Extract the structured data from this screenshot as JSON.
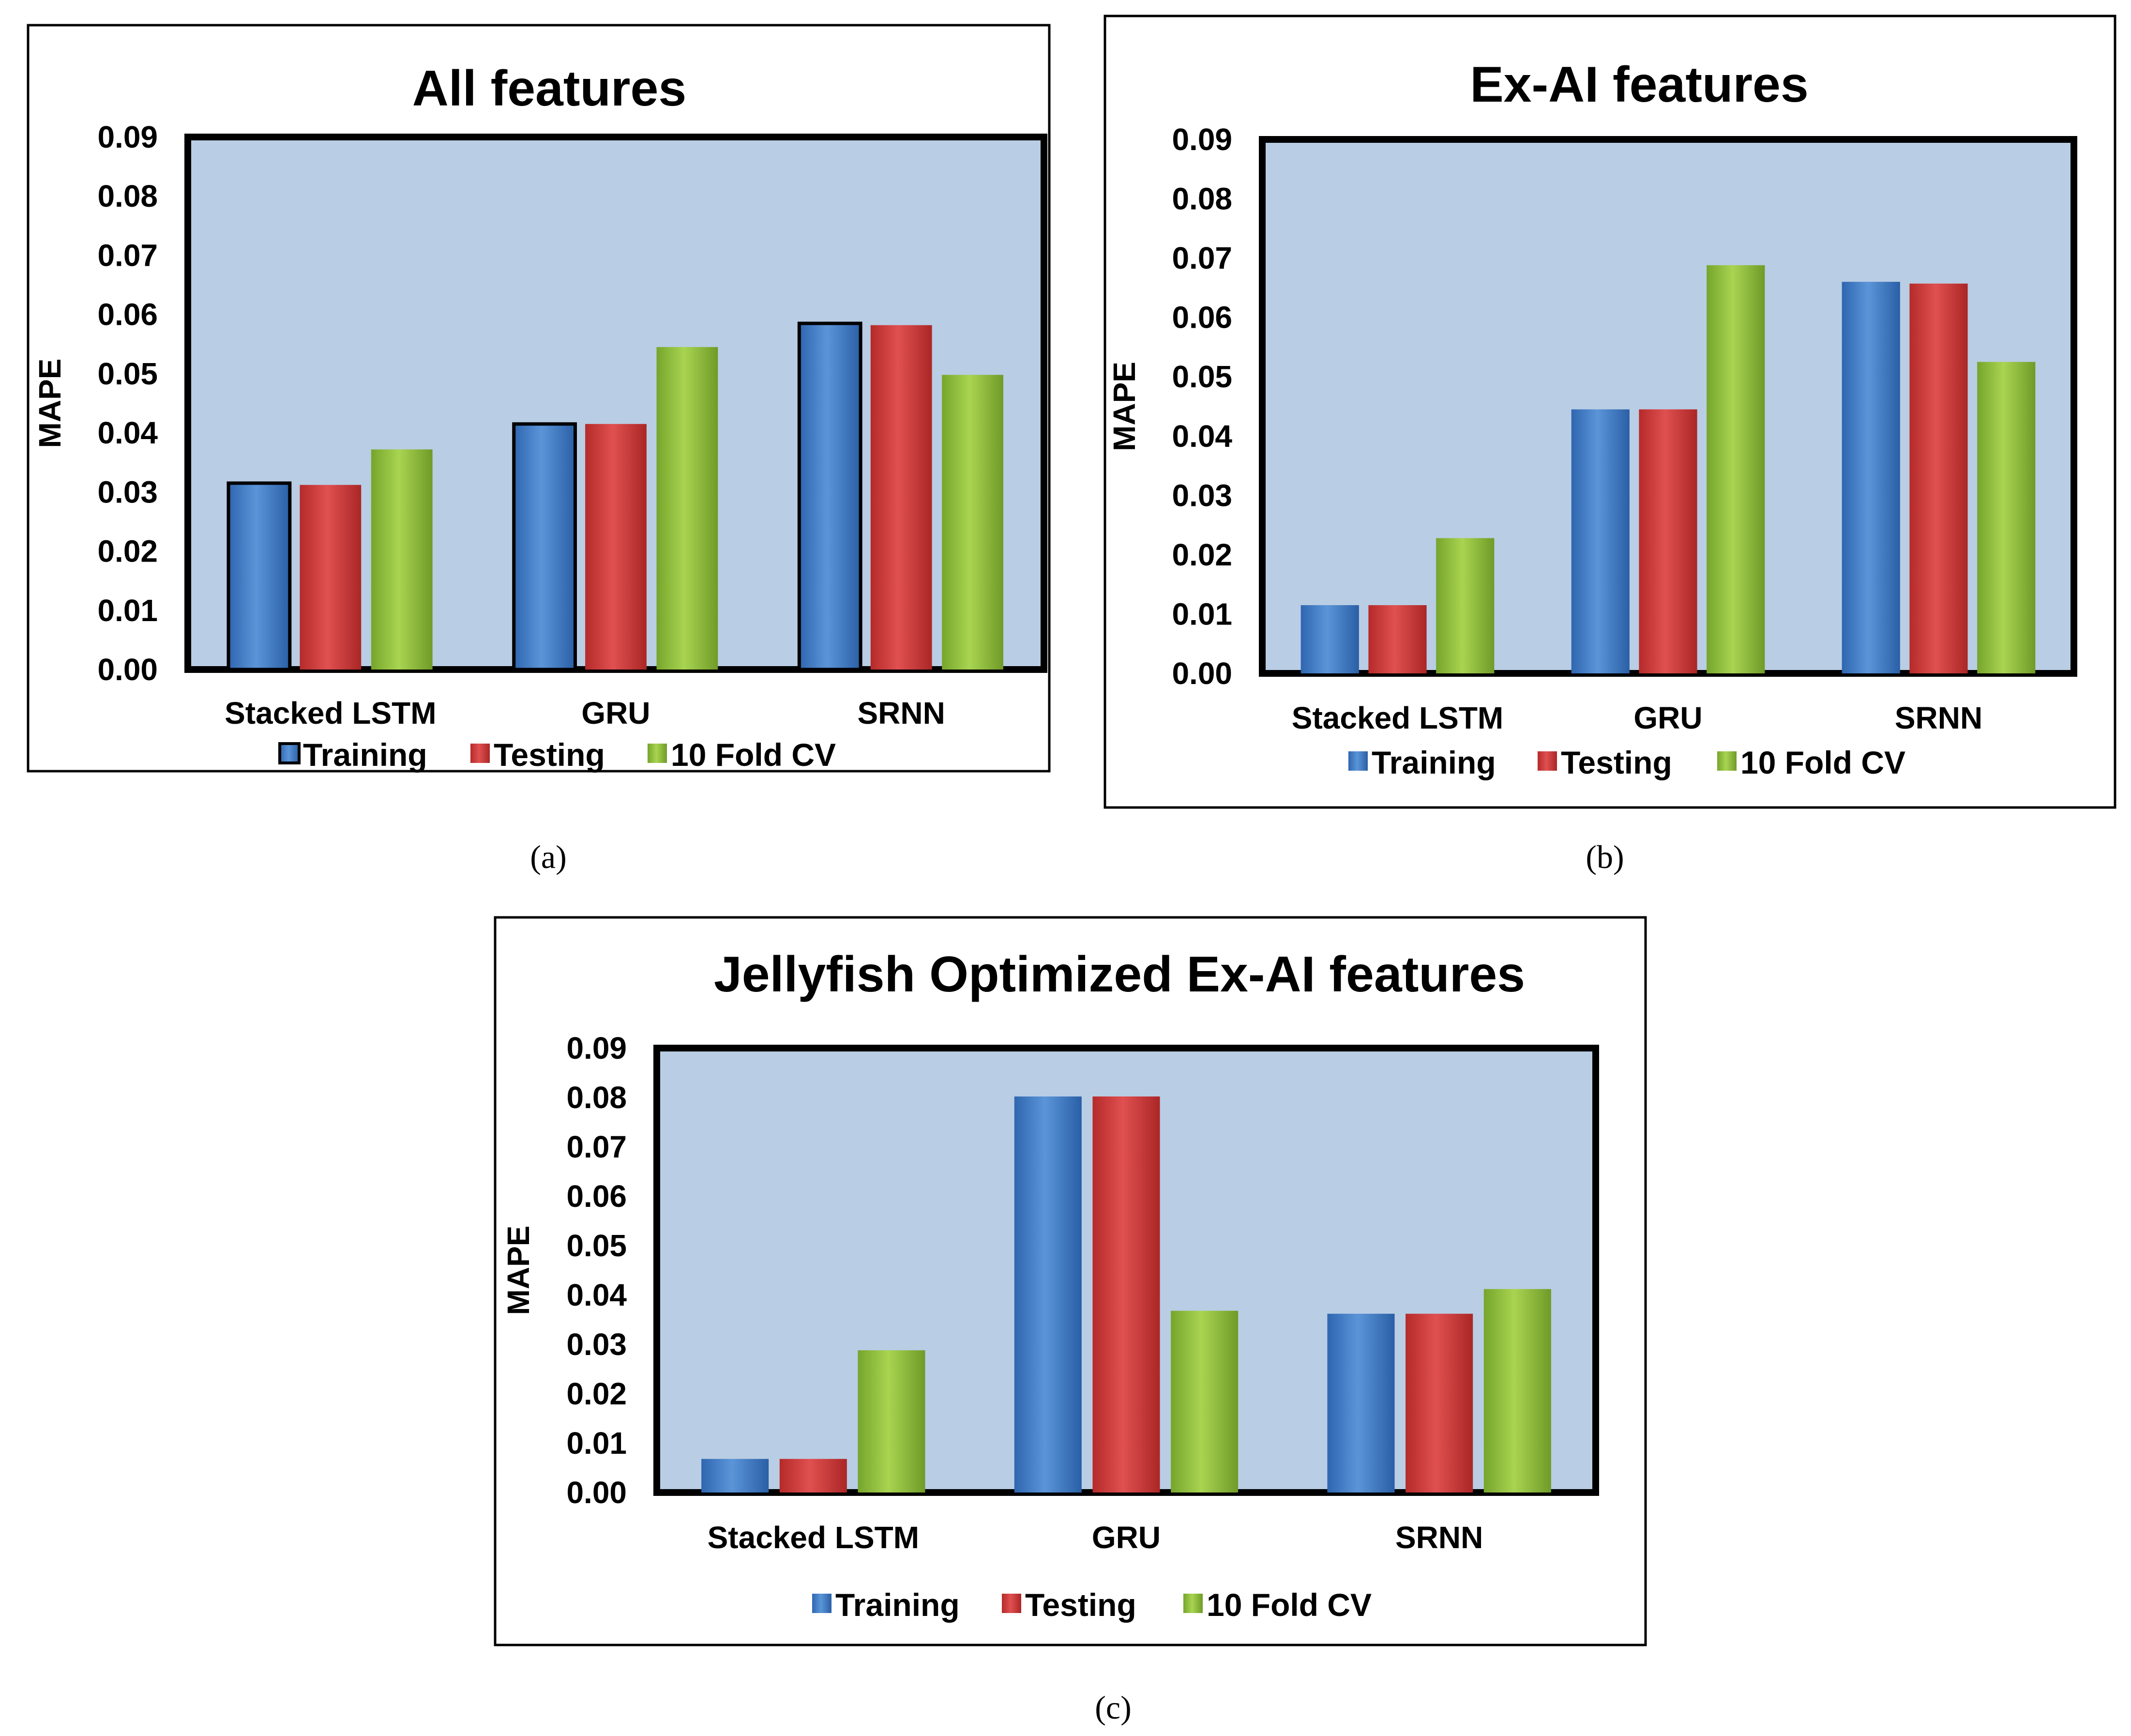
{
  "colors": {
    "plot_bg": "#b9cde4",
    "training": "#4a86cf",
    "testing": "#d63c3c",
    "cv": "#93c23d",
    "frame": "#000000"
  },
  "chart_data": [
    {
      "type": "bar",
      "panel_label": "(a)",
      "title": "All features",
      "ylabel": "MAPE",
      "xlabel": "",
      "ylim": [
        0,
        0.09
      ],
      "yticks": [
        "0.00",
        "0.01",
        "0.02",
        "0.03",
        "0.04",
        "0.05",
        "0.06",
        "0.07",
        "0.08",
        "0.09"
      ],
      "categories": [
        "Stacked LSTM",
        "GRU",
        "SRNN"
      ],
      "series": [
        {
          "name": "Training",
          "values": [
            0.0315,
            0.0415,
            0.0585
          ]
        },
        {
          "name": "Testing",
          "values": [
            0.0312,
            0.0415,
            0.0582
          ]
        },
        {
          "name": "10 Fold CV",
          "values": [
            0.0372,
            0.0545,
            0.0498
          ]
        }
      ],
      "training_outlined": true
    },
    {
      "type": "bar",
      "panel_label": "(b)",
      "title": "Ex-AI features",
      "ylabel": "MAPE",
      "xlabel": "",
      "ylim": [
        0,
        0.09
      ],
      "yticks": [
        "0.00",
        "0.01",
        "0.02",
        "0.03",
        "0.04",
        "0.05",
        "0.06",
        "0.07",
        "0.08",
        "0.09"
      ],
      "categories": [
        "Stacked LSTM",
        "GRU",
        "SRNN"
      ],
      "series": [
        {
          "name": "Training",
          "values": [
            0.0115,
            0.0445,
            0.066
          ]
        },
        {
          "name": "Testing",
          "values": [
            0.0115,
            0.0445,
            0.0657
          ]
        },
        {
          "name": "10 Fold CV",
          "values": [
            0.0228,
            0.0688,
            0.0525
          ]
        }
      ],
      "training_outlined": false
    },
    {
      "type": "bar",
      "panel_label": "(c)",
      "title": "Jellyfish Optimized Ex-AI features",
      "ylabel": "MAPE",
      "xlabel": "",
      "ylim": [
        0,
        0.09
      ],
      "yticks": [
        "0.00",
        "0.01",
        "0.02",
        "0.03",
        "0.04",
        "0.05",
        "0.06",
        "0.07",
        "0.08",
        "0.09"
      ],
      "categories": [
        "Stacked LSTM",
        "GRU",
        "SRNN"
      ],
      "series": [
        {
          "name": "Training",
          "values": [
            0.0068,
            0.0802,
            0.0362
          ]
        },
        {
          "name": "Testing",
          "values": [
            0.0068,
            0.0802,
            0.0362
          ]
        },
        {
          "name": "10 Fold CV",
          "values": [
            0.0288,
            0.0368,
            0.0412
          ]
        }
      ],
      "training_outlined": false
    }
  ]
}
